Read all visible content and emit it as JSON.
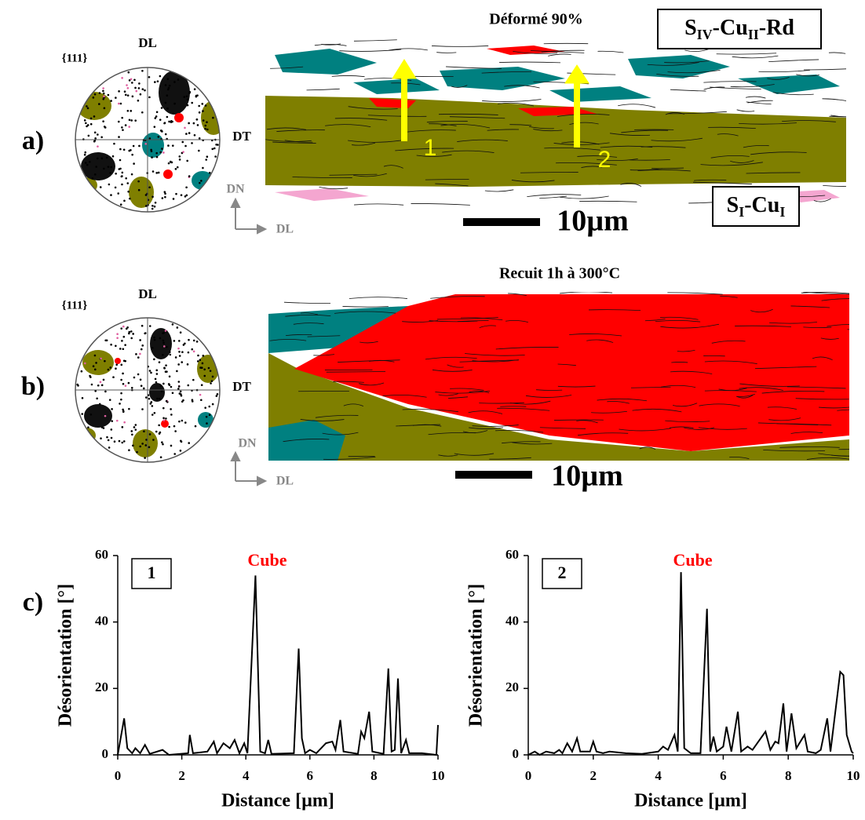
{
  "panel_a": {
    "label": "a)",
    "title": "Déformé 90%",
    "pole_family": "{111}",
    "pole_top": "DL",
    "pole_right": "DT",
    "axis_up": "DN",
    "axis_right": "DL",
    "scale": "10µm",
    "arrows": [
      "1",
      "2"
    ],
    "texture_top": [
      "S",
      "IV",
      "-Cu",
      "II",
      "-Rd"
    ],
    "texture_bottom": [
      "S",
      "I",
      "-Cu",
      "I"
    ]
  },
  "panel_b": {
    "label": "b)",
    "title": "Recuit 1h à 300°C",
    "pole_family": "{111}",
    "pole_top": "DL",
    "pole_right": "DT",
    "axis_up": "DN",
    "axis_right": "DL",
    "scale": "10µm"
  },
  "panel_c": {
    "label": "c)"
  },
  "chart_data": [
    {
      "type": "line",
      "title": "1",
      "annotation": "Cube",
      "annotation_color": "#ff0000",
      "color": "#000000",
      "xlabel": "Distance [µm]",
      "ylabel": "Désorientation [°]",
      "xlim": [
        0,
        10
      ],
      "xticks": [
        0,
        2,
        4,
        6,
        8,
        10
      ],
      "ylim": [
        0,
        60
      ],
      "yticks": [
        0,
        20,
        40,
        60
      ],
      "x": [
        0,
        0.2,
        0.3,
        0.45,
        0.55,
        0.7,
        0.85,
        1.0,
        1.4,
        1.6,
        2.2,
        2.25,
        2.35,
        2.8,
        3.0,
        3.1,
        3.3,
        3.5,
        3.65,
        3.8,
        3.95,
        4.05,
        4.3,
        4.45,
        4.6,
        4.7,
        4.8,
        5.5,
        5.65,
        5.75,
        5.85,
        6.0,
        6.2,
        6.5,
        6.7,
        6.8,
        6.95,
        7.05,
        7.5,
        7.6,
        7.7,
        7.85,
        7.95,
        8.3,
        8.45,
        8.55,
        8.65,
        8.75,
        8.85,
        9.0,
        9.1,
        9.5,
        9.95,
        10.0
      ],
      "values": [
        0,
        11,
        2,
        0.5,
        2,
        0.5,
        3,
        0.3,
        1.5,
        0,
        0.5,
        6,
        0.5,
        1,
        4,
        0.5,
        3.5,
        2,
        4.5,
        0.5,
        3.5,
        0.5,
        54,
        1,
        0.5,
        4.5,
        0.3,
        0.5,
        32,
        5,
        0.5,
        1.5,
        0.5,
        3.5,
        4,
        1.5,
        10.5,
        1,
        0.3,
        7,
        5,
        13,
        1,
        0.3,
        26,
        1,
        1.5,
        23,
        0.5,
        4.5,
        0.5,
        0.5,
        0,
        9
      ]
    },
    {
      "type": "line",
      "title": "2",
      "annotation": "Cube",
      "annotation_color": "#ff0000",
      "color": "#000000",
      "xlabel": "Distance [µm]",
      "ylabel": "Désorientation [°]",
      "xlim": [
        0,
        10
      ],
      "xticks": [
        0,
        2,
        4,
        6,
        8,
        10
      ],
      "ylim": [
        0,
        60
      ],
      "yticks": [
        0,
        20,
        40,
        60
      ],
      "x": [
        0,
        0.2,
        0.35,
        0.55,
        0.8,
        0.95,
        1.05,
        1.2,
        1.35,
        1.5,
        1.6,
        1.9,
        2.0,
        2.1,
        2.3,
        2.5,
        3.0,
        3.5,
        4.0,
        4.15,
        4.3,
        4.5,
        4.6,
        4.7,
        4.8,
        5.0,
        5.3,
        5.5,
        5.6,
        5.7,
        5.8,
        6.0,
        6.1,
        6.25,
        6.45,
        6.55,
        6.75,
        6.9,
        7.3,
        7.45,
        7.6,
        7.7,
        7.85,
        7.95,
        8.1,
        8.25,
        8.5,
        8.6,
        8.85,
        9.0,
        9.2,
        9.3,
        9.6,
        9.7,
        9.8,
        9.95,
        10.0
      ],
      "values": [
        0,
        1,
        0,
        1,
        0.5,
        1.5,
        0.5,
        3.5,
        1,
        5,
        1,
        1,
        4,
        1,
        0.5,
        1,
        0.5,
        0.3,
        1,
        2.5,
        1.5,
        6,
        1,
        55,
        2,
        0.5,
        0.5,
        44,
        1,
        5.5,
        1,
        2.5,
        8.5,
        1,
        13,
        1,
        2.5,
        1.5,
        7,
        1.5,
        4,
        3.5,
        15.5,
        1,
        12.5,
        2,
        6,
        1,
        0.5,
        1.5,
        11,
        1,
        25,
        24,
        6,
        1,
        0.5
      ]
    }
  ]
}
